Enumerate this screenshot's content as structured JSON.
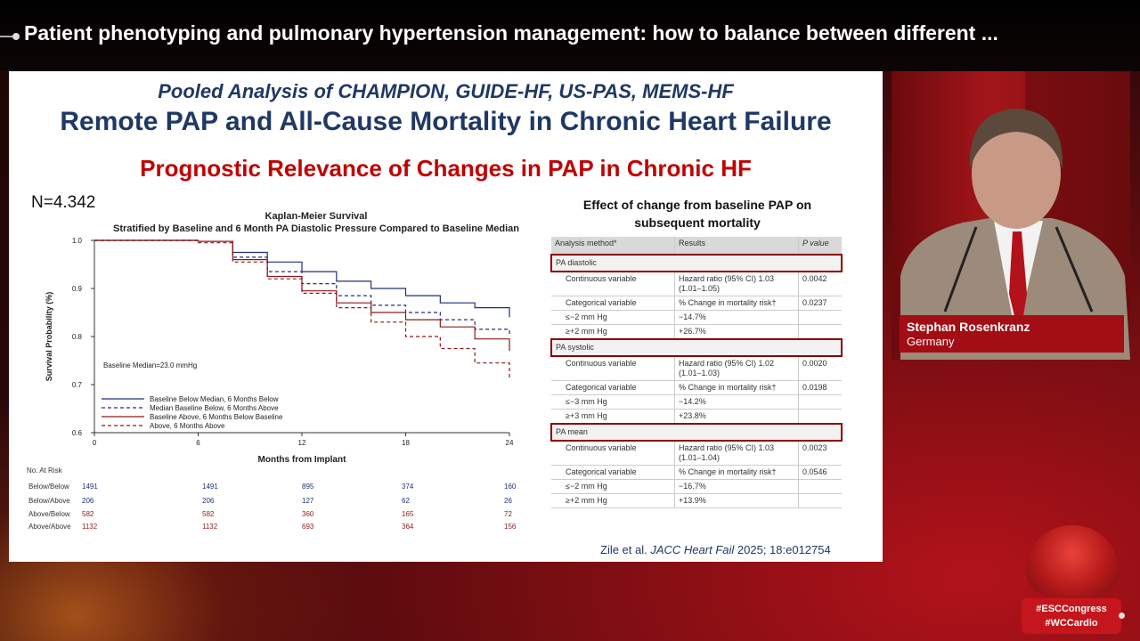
{
  "header": {
    "title": "Patient phenotyping and pulmonary hypertension management: how to balance between different ..."
  },
  "slide": {
    "subtitle": "Pooled Analysis of CHAMPION, GUIDE-HF, US-PAS, MEMS-HF",
    "title": "Remote PAP and All-Cause Mortality in Chronic Heart Failure",
    "heading": "Prognostic Relevance of Changes in PAP in Chronic HF",
    "n_label": "N=4.342",
    "km": {
      "title_line1": "Kaplan-Meier Survival",
      "title_line2": "Stratified by Baseline and 6 Month PA Diastolic Pressure Compared to Baseline Median",
      "annotation": "Baseline Median=23.0 mmHg",
      "legend": [
        "Baseline  Below  Median, 6  Months  Below",
        "Median  Baseline  Below, 6  Months  Above",
        "Baseline  Above, 6  Months  Below   Baseline",
        "Above, 6 Months Above"
      ]
    },
    "risk": {
      "header": "No. At Risk",
      "rows": [
        {
          "label": "Below/Below",
          "values": [
            "1491",
            "1491",
            "895",
            "374",
            "160"
          ],
          "color": "#1f2f7a"
        },
        {
          "label": "Below/Above",
          "values": [
            "206",
            "206",
            "127",
            "62",
            "26"
          ],
          "color": "#1f2f7a"
        },
        {
          "label": "Above/Below",
          "values": [
            "582",
            "582",
            "360",
            "165",
            "72"
          ],
          "color": "#8b1a1a"
        },
        {
          "label": "Above/Above",
          "values": [
            "1132",
            "1132",
            "693",
            "364",
            "156"
          ],
          "color": "#8b1a1a"
        }
      ]
    },
    "table": {
      "title_line1": "Effect of change from baseline PAP on",
      "title_line2": "subsequent mortality",
      "headers": [
        "Analysis method*",
        "Results",
        "P value"
      ],
      "sections": [
        {
          "name": "PA diastolic",
          "rows": [
            [
              "Continuous variable",
              "Hazard ratio (95% CI) 1.03 (1.01–1.05)",
              "0.0042"
            ],
            [
              "Categorical variable",
              "% Change in mortality risk†",
              "0.0237"
            ],
            [
              "≤−2 mm Hg",
              "−14.7%",
              ""
            ],
            [
              "≥+2 mm Hg",
              "+26.7%",
              ""
            ]
          ]
        },
        {
          "name": "PA systolic",
          "rows": [
            [
              "Continuous variable",
              "Hazard ratio (95% CI) 1.02 (1.01–1.03)",
              "0.0020"
            ],
            [
              "Categorical variable",
              "% Change in mortality risk†",
              "0.0198"
            ],
            [
              "≤−3 mm Hg",
              "−14.2%",
              ""
            ],
            [
              "≥+3 mm Hg",
              "+23.8%",
              ""
            ]
          ]
        },
        {
          "name": "PA mean",
          "rows": [
            [
              "Continuous variable",
              "Hazard ratio (95% CI) 1.03 (1.01–1.04)",
              "0.0023"
            ],
            [
              "Categorical variable",
              "% Change in mortality risk†",
              "0.0546"
            ],
            [
              "≤−2 mm Hg",
              "−16.7%",
              ""
            ],
            [
              "≥+2 mm Hg",
              "+13.9%",
              ""
            ]
          ]
        }
      ]
    },
    "citation": {
      "authors": "Zile et al. ",
      "journal": "JACC Heart Fail",
      "rest": " 2025; 18:e012754"
    }
  },
  "speaker": {
    "name": "Stephan Rosenkranz",
    "country": "Germany"
  },
  "tags": {
    "tag1": "#ESCCongress",
    "tag2": "#WCCardio"
  },
  "chart_data": {
    "type": "line",
    "title": "Kaplan-Meier Survival",
    "subtitle": "Stratified by Baseline and 6 Month PA Diastolic Pressure Compared to Baseline Median",
    "xlabel": "Months from Implant",
    "ylabel": "Survival Probability (%)",
    "xlim": [
      0,
      24
    ],
    "ylim": [
      0.6,
      1.0
    ],
    "xticks": [
      0,
      6,
      12,
      18,
      24
    ],
    "yticks": [
      0.6,
      0.7,
      0.8,
      0.9,
      1.0
    ],
    "legend_position": "bottom-left",
    "series": [
      {
        "name": "Baseline Below Median, 6 Months Below",
        "color": "#1f2f7a",
        "dash": false,
        "x": [
          0,
          6,
          8,
          10,
          12,
          14,
          16,
          18,
          20,
          22,
          24
        ],
        "y": [
          1.0,
          0.998,
          0.975,
          0.955,
          0.935,
          0.915,
          0.9,
          0.885,
          0.87,
          0.86,
          0.84
        ]
      },
      {
        "name": "Median Baseline Below, 6 Months Above",
        "color": "#1f2f7a",
        "dash": true,
        "x": [
          0,
          6,
          8,
          10,
          12,
          14,
          16,
          18,
          20,
          22,
          24
        ],
        "y": [
          1.0,
          0.998,
          0.965,
          0.935,
          0.91,
          0.885,
          0.865,
          0.85,
          0.835,
          0.815,
          0.805
        ]
      },
      {
        "name": "Baseline Above, 6 Months Below Baseline",
        "color": "#8b1a1a",
        "dash": false,
        "x": [
          0,
          6,
          8,
          10,
          12,
          14,
          16,
          18,
          20,
          22,
          24
        ],
        "y": [
          1.0,
          0.998,
          0.96,
          0.925,
          0.895,
          0.87,
          0.85,
          0.835,
          0.82,
          0.795,
          0.77
        ]
      },
      {
        "name": "Above, 6 Months Above",
        "color": "#8b1a1a",
        "dash": true,
        "x": [
          0,
          6,
          8,
          10,
          12,
          14,
          16,
          18,
          20,
          22,
          24
        ],
        "y": [
          1.0,
          0.995,
          0.955,
          0.92,
          0.89,
          0.86,
          0.83,
          0.8,
          0.775,
          0.745,
          0.71
        ]
      }
    ]
  }
}
